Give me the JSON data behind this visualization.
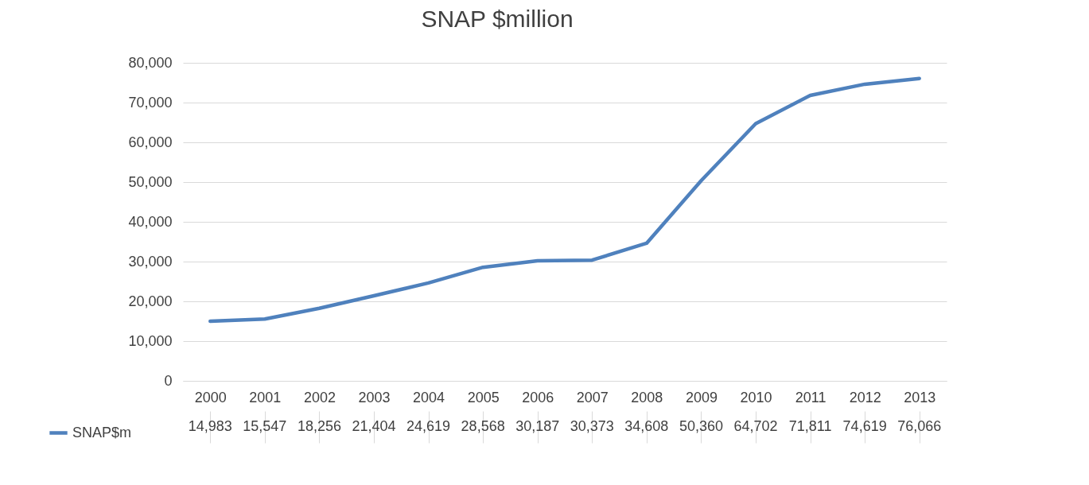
{
  "chart_data": {
    "type": "line",
    "title": "SNAP $million",
    "categories": [
      "2000",
      "2001",
      "2002",
      "2003",
      "2004",
      "2005",
      "2006",
      "2007",
      "2008",
      "2009",
      "2010",
      "2011",
      "2012",
      "2013"
    ],
    "series": [
      {
        "name": "SNAP$m",
        "color": "#4f81bd",
        "values": [
          14983,
          15547,
          18256,
          21404,
          24619,
          28568,
          30187,
          30373,
          34608,
          50360,
          64702,
          71811,
          74619,
          76066
        ]
      }
    ],
    "ylim": [
      0,
      80000
    ],
    "yticks": [
      0,
      {
        "value": 10000,
        "label": "10,000"
      },
      {
        "value": 20000,
        "label": "20,000"
      },
      {
        "value": 30000,
        "label": "30,000"
      },
      {
        "value": 40000,
        "label": "40,000"
      },
      {
        "value": 50000,
        "label": "50,000"
      },
      {
        "value": 60000,
        "label": "60,000"
      },
      {
        "value": 70000,
        "label": "70,000"
      },
      {
        "value": 80000,
        "label": "80,000"
      }
    ],
    "value_labels": [
      "14,983",
      "15,547",
      "18,256",
      "21,404",
      "24,619",
      "28,568",
      "30,187",
      "30,373",
      "34,608",
      "50,360",
      "64,702",
      "71,811",
      "74,619",
      "76,066"
    ],
    "grid": "y",
    "legend": "bottom left",
    "marker": "none",
    "line_style": "solid"
  }
}
